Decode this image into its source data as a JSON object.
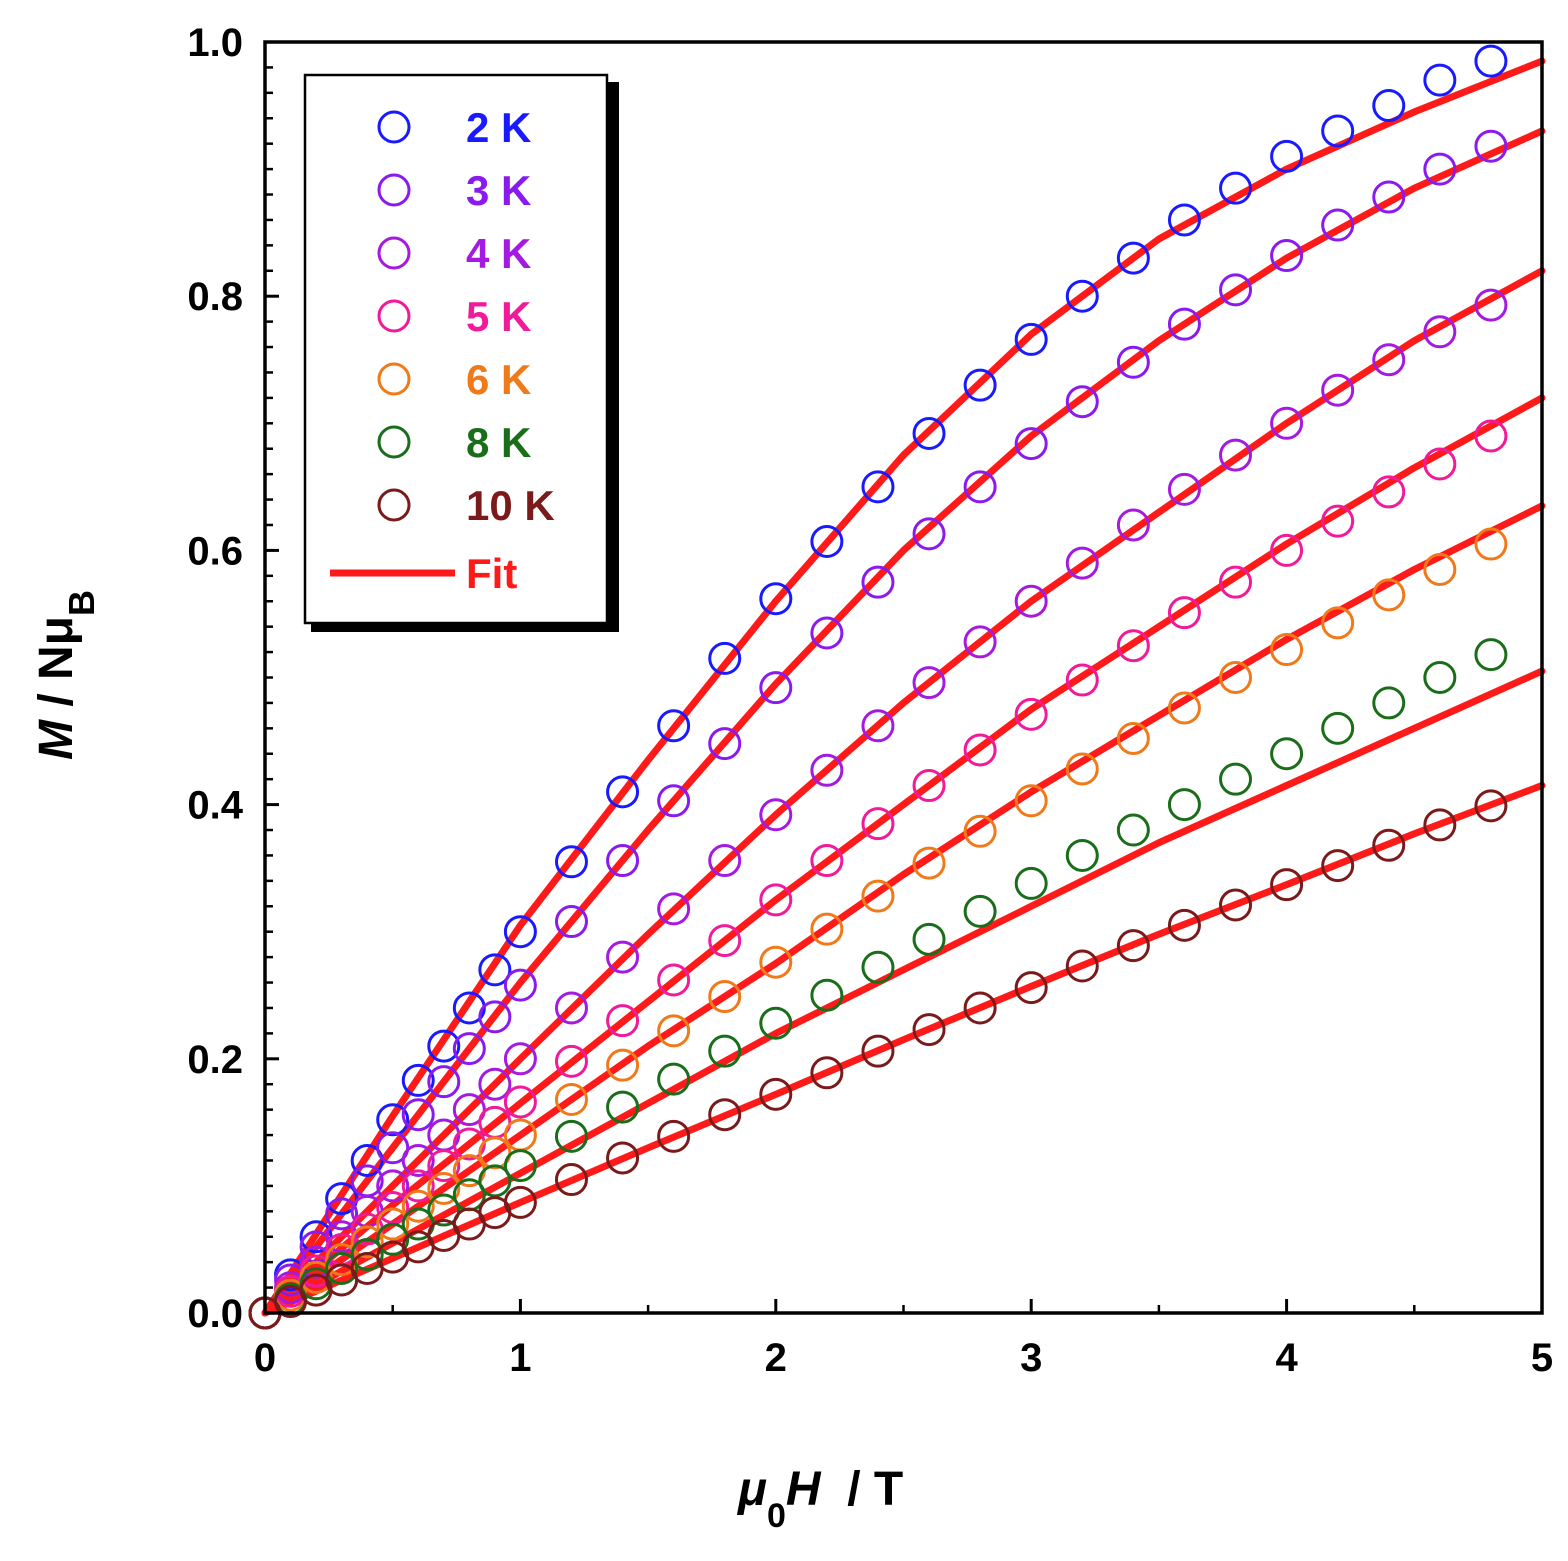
{
  "chart_data": {
    "type": "scatter",
    "xlabel": {
      "mu": "μ",
      "sub": "0",
      "H": "H",
      "rest": "  / T"
    },
    "ylabel": {
      "M": "M",
      "rest": " / Nμ",
      "sub": "B"
    },
    "xlim": [
      0,
      5
    ],
    "ylim": [
      0,
      1.0
    ],
    "x_ticks": [
      "0",
      "1",
      "2",
      "3",
      "4",
      "5"
    ],
    "y_ticks": [
      "0.0",
      "0.2",
      "0.4",
      "0.6",
      "0.8",
      "1.0"
    ],
    "grid": false,
    "legend_position": "top-left",
    "fit": {
      "name": "Fit",
      "color": "#ff1a1a",
      "x": [
        0,
        0.5,
        1,
        1.5,
        2,
        2.5,
        3,
        3.5,
        4,
        4.5,
        5
      ],
      "series": [
        {
          "name": "2 K",
          "values": [
            0,
            0.155,
            0.305,
            0.435,
            0.56,
            0.675,
            0.77,
            0.845,
            0.9,
            0.945,
            0.985
          ]
        },
        {
          "name": "3 K",
          "values": [
            0,
            0.13,
            0.26,
            0.38,
            0.495,
            0.6,
            0.69,
            0.765,
            0.83,
            0.885,
            0.93
          ]
        },
        {
          "name": "4 K",
          "values": [
            0,
            0.1,
            0.2,
            0.298,
            0.392,
            0.48,
            0.56,
            0.63,
            0.7,
            0.765,
            0.82
          ]
        },
        {
          "name": "5 K",
          "values": [
            0,
            0.085,
            0.165,
            0.245,
            0.325,
            0.4,
            0.475,
            0.54,
            0.605,
            0.665,
            0.72
          ]
        },
        {
          "name": "6 K",
          "values": [
            0,
            0.07,
            0.14,
            0.21,
            0.275,
            0.345,
            0.41,
            0.47,
            0.53,
            0.585,
            0.635
          ]
        },
        {
          "name": "8 K",
          "values": [
            0,
            0.055,
            0.11,
            0.165,
            0.22,
            0.27,
            0.32,
            0.37,
            0.415,
            0.46,
            0.505
          ]
        },
        {
          "name": "10 K",
          "values": [
            0,
            0.043,
            0.087,
            0.13,
            0.172,
            0.215,
            0.257,
            0.298,
            0.337,
            0.377,
            0.415
          ]
        }
      ]
    },
    "series": [
      {
        "name": "2 K",
        "color": "#1a1aff",
        "x": [
          0,
          0.1,
          0.2,
          0.3,
          0.4,
          0.5,
          0.6,
          0.7,
          0.8,
          0.9,
          1.0,
          1.2,
          1.4,
          1.6,
          1.8,
          2.0,
          2.2,
          2.4,
          2.6,
          2.8,
          3.0,
          3.2,
          3.4,
          3.6,
          3.8,
          4.0,
          4.2,
          4.4,
          4.6,
          4.8
        ],
        "values": [
          0,
          0.03,
          0.06,
          0.09,
          0.12,
          0.152,
          0.183,
          0.21,
          0.24,
          0.27,
          0.3,
          0.355,
          0.41,
          0.462,
          0.515,
          0.562,
          0.607,
          0.65,
          0.692,
          0.73,
          0.766,
          0.8,
          0.83,
          0.86,
          0.885,
          0.91,
          0.93,
          0.95,
          0.97,
          0.985
        ]
      },
      {
        "name": "3 K",
        "color": "#8b1aee",
        "x": [
          0,
          0.1,
          0.2,
          0.3,
          0.4,
          0.5,
          0.6,
          0.7,
          0.8,
          0.9,
          1.0,
          1.2,
          1.4,
          1.6,
          1.8,
          2.0,
          2.2,
          2.4,
          2.6,
          2.8,
          3.0,
          3.2,
          3.4,
          3.6,
          3.8,
          4.0,
          4.2,
          4.4,
          4.6,
          4.8
        ],
        "values": [
          0,
          0.026,
          0.052,
          0.078,
          0.104,
          0.13,
          0.156,
          0.182,
          0.208,
          0.233,
          0.258,
          0.308,
          0.356,
          0.403,
          0.448,
          0.492,
          0.535,
          0.575,
          0.613,
          0.65,
          0.684,
          0.717,
          0.748,
          0.778,
          0.805,
          0.832,
          0.856,
          0.878,
          0.9,
          0.918
        ]
      },
      {
        "name": "4 K",
        "color": "#a51ae0",
        "x": [
          0,
          0.1,
          0.2,
          0.3,
          0.4,
          0.5,
          0.6,
          0.7,
          0.8,
          0.9,
          1.0,
          1.2,
          1.4,
          1.6,
          1.8,
          2.0,
          2.2,
          2.4,
          2.6,
          2.8,
          3.0,
          3.2,
          3.4,
          3.6,
          3.8,
          4.0,
          4.2,
          4.4,
          4.6,
          4.8
        ],
        "values": [
          0,
          0.02,
          0.04,
          0.06,
          0.08,
          0.1,
          0.12,
          0.14,
          0.16,
          0.18,
          0.2,
          0.24,
          0.28,
          0.318,
          0.356,
          0.392,
          0.427,
          0.462,
          0.496,
          0.528,
          0.56,
          0.59,
          0.62,
          0.648,
          0.675,
          0.7,
          0.726,
          0.75,
          0.772,
          0.793
        ]
      },
      {
        "name": "5 K",
        "color": "#f01a9a",
        "x": [
          0,
          0.1,
          0.2,
          0.3,
          0.4,
          0.5,
          0.6,
          0.7,
          0.8,
          0.9,
          1.0,
          1.2,
          1.4,
          1.6,
          1.8,
          2.0,
          2.2,
          2.4,
          2.6,
          2.8,
          3.0,
          3.2,
          3.4,
          3.6,
          3.8,
          4.0,
          4.2,
          4.4,
          4.6,
          4.8
        ],
        "values": [
          0,
          0.017,
          0.033,
          0.05,
          0.066,
          0.083,
          0.1,
          0.116,
          0.133,
          0.15,
          0.166,
          0.198,
          0.23,
          0.262,
          0.293,
          0.325,
          0.356,
          0.385,
          0.415,
          0.443,
          0.471,
          0.498,
          0.525,
          0.551,
          0.575,
          0.6,
          0.623,
          0.646,
          0.668,
          0.69
        ]
      },
      {
        "name": "6 K",
        "color": "#f07a1a",
        "x": [
          0,
          0.1,
          0.2,
          0.3,
          0.4,
          0.5,
          0.6,
          0.7,
          0.8,
          0.9,
          1.0,
          1.2,
          1.4,
          1.6,
          1.8,
          2.0,
          2.2,
          2.4,
          2.6,
          2.8,
          3.0,
          3.2,
          3.4,
          3.6,
          3.8,
          4.0,
          4.2,
          4.4,
          4.6,
          4.8
        ],
        "values": [
          0,
          0.014,
          0.028,
          0.042,
          0.056,
          0.07,
          0.084,
          0.098,
          0.112,
          0.126,
          0.14,
          0.168,
          0.195,
          0.222,
          0.249,
          0.276,
          0.302,
          0.328,
          0.354,
          0.379,
          0.403,
          0.428,
          0.452,
          0.476,
          0.5,
          0.522,
          0.543,
          0.565,
          0.585,
          0.605
        ]
      },
      {
        "name": "8 K",
        "color": "#1a6e1a",
        "x": [
          0,
          0.1,
          0.2,
          0.3,
          0.4,
          0.5,
          0.6,
          0.7,
          0.8,
          0.9,
          1.0,
          1.2,
          1.4,
          1.6,
          1.8,
          2.0,
          2.2,
          2.4,
          2.6,
          2.8,
          3.0,
          3.2,
          3.4,
          3.6,
          3.8,
          4.0,
          4.2,
          4.4,
          4.6,
          4.8
        ],
        "values": [
          0,
          0.011,
          0.023,
          0.035,
          0.046,
          0.058,
          0.07,
          0.081,
          0.093,
          0.104,
          0.116,
          0.139,
          0.162,
          0.184,
          0.206,
          0.228,
          0.25,
          0.272,
          0.294,
          0.316,
          0.338,
          0.36,
          0.38,
          0.4,
          0.42,
          0.44,
          0.46,
          0.48,
          0.5,
          0.518
        ]
      },
      {
        "name": "10 K",
        "color": "#7a1a1a",
        "x": [
          0,
          0.1,
          0.2,
          0.3,
          0.4,
          0.5,
          0.6,
          0.7,
          0.8,
          0.9,
          1.0,
          1.2,
          1.4,
          1.6,
          1.8,
          2.0,
          2.2,
          2.4,
          2.6,
          2.8,
          3.0,
          3.2,
          3.4,
          3.6,
          3.8,
          4.0,
          4.2,
          4.4,
          4.6,
          4.8
        ],
        "values": [
          0,
          0.009,
          0.018,
          0.026,
          0.035,
          0.044,
          0.052,
          0.061,
          0.07,
          0.079,
          0.087,
          0.105,
          0.122,
          0.139,
          0.156,
          0.172,
          0.189,
          0.206,
          0.223,
          0.24,
          0.256,
          0.273,
          0.289,
          0.305,
          0.321,
          0.337,
          0.352,
          0.368,
          0.384,
          0.399
        ]
      }
    ]
  }
}
